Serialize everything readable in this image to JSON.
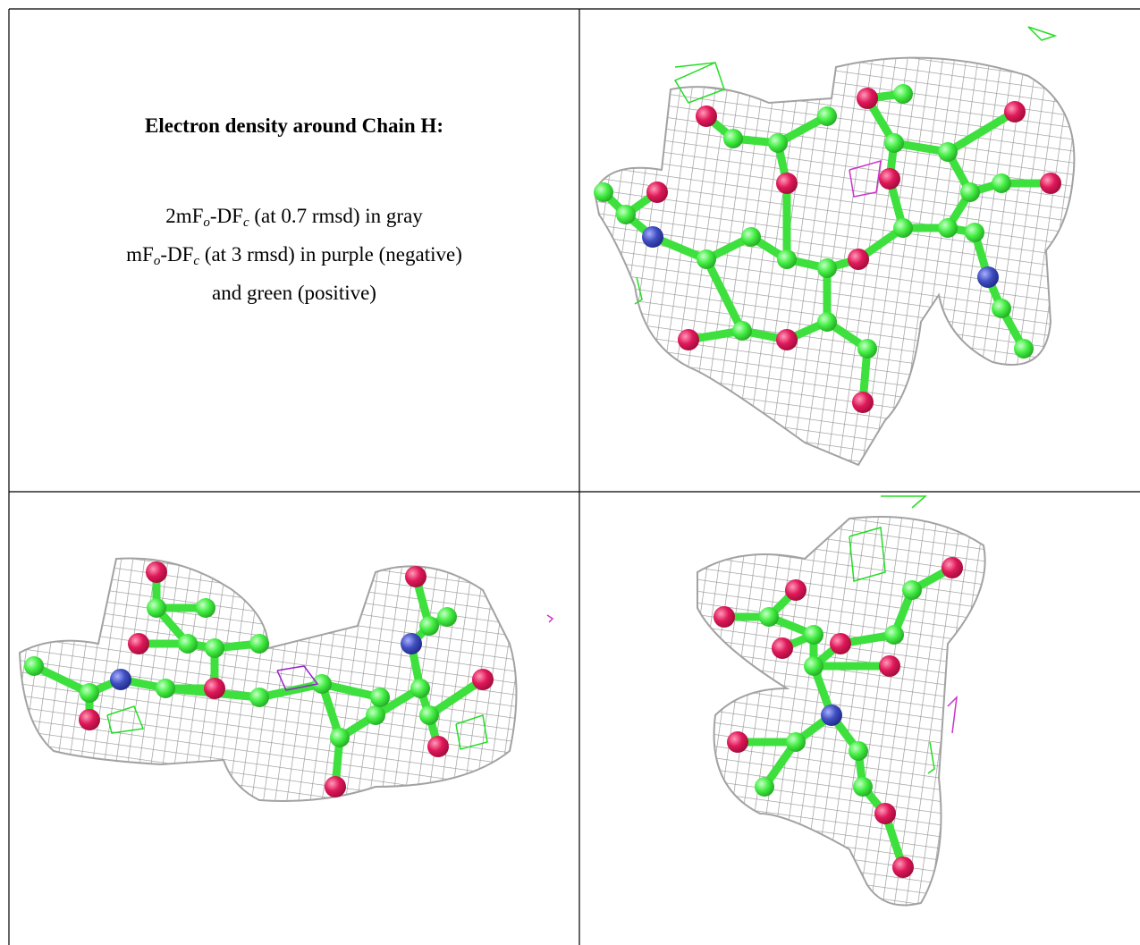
{
  "caption": {
    "title": "Electron density around Chain H:",
    "lines": [
      [
        "2mF",
        "o",
        "-DF",
        "c",
        " (at 0.7 rmsd) in gray"
      ],
      [
        "mF",
        "o",
        "-DF",
        "c",
        " (at 3 rmsd) in purple (negative)"
      ],
      [
        "and green (positive)"
      ]
    ]
  }
}
